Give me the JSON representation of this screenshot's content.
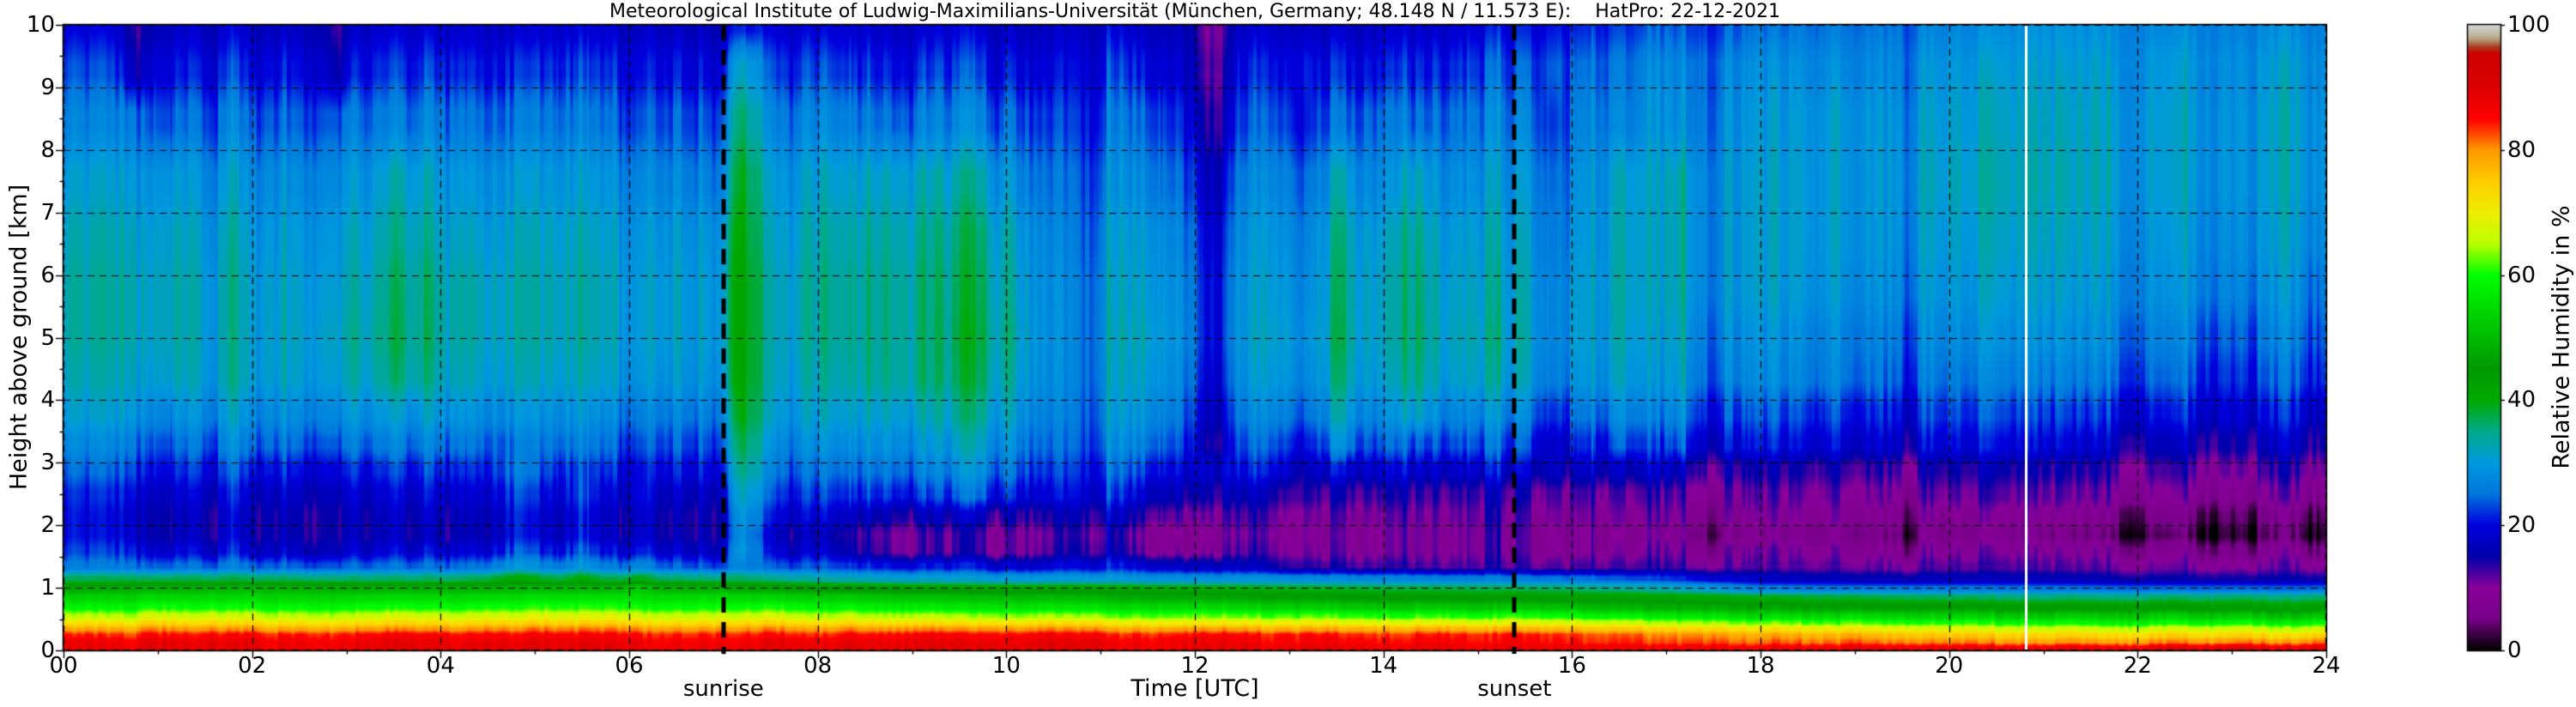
{
  "title": "Meteorological Institute of Ludwig-Maximilians-Universität (München, Germany; 48.148 N / 11.573 E):    HatPro: 22-12-2021",
  "axes": {
    "x_label": "Time [UTC]",
    "y_label": "Height above ground [km]",
    "x_tick_times": [
      0,
      2,
      4,
      6,
      8,
      10,
      12,
      14,
      16,
      18,
      20,
      22,
      24
    ],
    "x_tick_labels": [
      "00",
      "02",
      "04",
      "06",
      "08",
      "10",
      "12",
      "14",
      "16",
      "18",
      "20",
      "22",
      "24"
    ],
    "y_tick_values": [
      0,
      1,
      2,
      3,
      4,
      5,
      6,
      7,
      8,
      9,
      10
    ],
    "y_tick_labels": [
      "0",
      "1",
      "2",
      "3",
      "4",
      "5",
      "6",
      "7",
      "8",
      "9",
      "10"
    ],
    "x_range_hours": [
      0,
      24
    ],
    "y_range_km": [
      0,
      10
    ],
    "grid": "dashed"
  },
  "colorbar": {
    "label": "Relative Humidity in %",
    "tick_values": [
      0,
      20,
      40,
      60,
      80,
      100
    ],
    "tick_labels": [
      "0",
      "20",
      "40",
      "60",
      "80",
      "100"
    ],
    "range": [
      0,
      100
    ]
  },
  "annotations": {
    "sunrise_label": "sunrise",
    "sunset_label": "sunset",
    "sunrise_time_utc": 7.0,
    "sunset_time_utc": 15.39,
    "data_gap_time_utc": 20.81,
    "line_color": "#000000",
    "gap_line_color": "#ffffff"
  },
  "chart_data": {
    "type": "heatmap",
    "value_name": "Relative Humidity in %",
    "x_unit": "hours UTC",
    "y_unit": "km above ground",
    "heights": [
      0.05,
      0.15,
      0.25,
      0.35,
      0.45,
      0.55,
      0.7,
      0.85,
      1.0,
      1.15,
      1.35,
      1.6,
      1.85,
      2.15,
      2.5,
      2.9,
      3.3,
      3.8,
      4.4,
      5.0,
      5.8,
      6.6,
      7.5,
      8.5,
      9.3,
      10.0
    ],
    "keyframe_times": [
      0,
      1,
      2,
      3,
      4,
      5,
      6,
      7,
      7.3,
      8,
      9,
      10,
      10.8,
      11.5,
      12.2,
      13,
      14,
      15,
      16,
      17,
      18,
      19,
      20,
      21,
      22,
      23,
      24
    ],
    "profiles": [
      [
        88,
        87,
        84,
        78,
        71,
        65,
        58,
        53,
        47,
        36,
        24,
        20,
        18,
        18,
        19,
        22,
        25,
        28,
        30,
        31,
        31,
        30,
        28,
        24,
        21,
        18
      ],
      [
        88,
        87,
        84,
        79,
        72,
        66,
        59,
        54,
        48,
        37,
        25,
        20,
        17,
        17,
        19,
        22,
        25,
        29,
        31,
        32,
        32,
        31,
        29,
        25,
        21,
        18
      ],
      [
        88,
        87,
        85,
        79,
        72,
        66,
        59,
        54,
        49,
        37,
        25,
        19,
        17,
        17,
        19,
        22,
        26,
        29,
        32,
        32,
        32,
        31,
        29,
        25,
        21,
        18
      ],
      [
        88,
        87,
        85,
        79,
        72,
        66,
        59,
        54,
        48,
        36,
        24,
        18,
        16,
        16,
        18,
        21,
        25,
        29,
        32,
        33,
        32,
        31,
        29,
        25,
        21,
        18
      ],
      [
        88,
        87,
        85,
        79,
        72,
        66,
        59,
        54,
        48,
        36,
        24,
        18,
        15,
        16,
        18,
        21,
        25,
        29,
        32,
        33,
        33,
        31,
        29,
        25,
        21,
        18
      ],
      [
        88,
        87,
        85,
        80,
        73,
        67,
        60,
        55,
        49,
        37,
        25,
        19,
        16,
        16,
        18,
        21,
        25,
        28,
        31,
        32,
        32,
        31,
        29,
        25,
        21,
        18
      ],
      [
        88,
        87,
        85,
        80,
        73,
        67,
        60,
        55,
        49,
        37,
        25,
        19,
        16,
        16,
        18,
        21,
        24,
        27,
        30,
        31,
        31,
        30,
        28,
        24,
        21,
        18
      ],
      [
        88,
        87,
        85,
        80,
        73,
        67,
        60,
        55,
        48,
        36,
        24,
        19,
        17,
        17,
        19,
        22,
        25,
        28,
        31,
        32,
        32,
        31,
        28,
        25,
        21,
        18
      ],
      [
        88,
        87,
        85,
        80,
        73,
        67,
        60,
        54,
        47,
        36,
        26,
        22,
        21,
        23,
        26,
        29,
        31,
        33,
        34,
        34,
        34,
        33,
        32,
        29,
        25,
        21
      ],
      [
        89,
        88,
        85,
        80,
        73,
        66,
        59,
        53,
        45,
        33,
        22,
        16,
        14,
        17,
        20,
        23,
        26,
        29,
        31,
        32,
        32,
        31,
        29,
        25,
        21,
        18
      ],
      [
        89,
        88,
        86,
        80,
        72,
        65,
        57,
        51,
        43,
        31,
        20,
        11,
        11,
        15,
        20,
        24,
        27,
        30,
        33,
        33,
        33,
        32,
        30,
        25,
        21,
        18
      ],
      [
        89,
        88,
        86,
        80,
        72,
        64,
        56,
        50,
        42,
        30,
        19,
        11,
        11,
        15,
        21,
        25,
        28,
        31,
        33,
        34,
        33,
        32,
        29,
        25,
        21,
        18
      ],
      [
        88,
        87,
        85,
        79,
        71,
        63,
        55,
        49,
        42,
        30,
        20,
        15,
        14,
        16,
        20,
        22,
        24,
        25,
        26,
        26,
        26,
        25,
        24,
        22,
        20,
        18
      ],
      [
        88,
        87,
        85,
        79,
        71,
        63,
        55,
        48,
        41,
        29,
        19,
        11,
        10,
        14,
        19,
        23,
        27,
        30,
        32,
        33,
        32,
        31,
        28,
        25,
        21,
        18
      ],
      [
        88,
        87,
        85,
        79,
        70,
        62,
        54,
        47,
        40,
        29,
        19,
        13,
        12,
        14,
        18,
        21,
        23,
        25,
        27,
        28,
        28,
        27,
        25,
        22,
        20,
        18
      ],
      [
        88,
        86,
        85,
        78,
        70,
        62,
        53,
        46,
        39,
        28,
        14,
        11,
        10,
        11,
        14,
        20,
        24,
        28,
        31,
        32,
        31,
        30,
        28,
        24,
        21,
        18
      ],
      [
        88,
        86,
        84,
        78,
        69,
        61,
        52,
        45,
        38,
        27,
        13,
        10,
        10,
        11,
        14,
        19,
        24,
        28,
        31,
        32,
        32,
        31,
        28,
        25,
        21,
        18
      ],
      [
        87,
        85,
        84,
        77,
        68,
        60,
        51,
        44,
        37,
        26,
        12,
        10,
        10,
        11,
        13,
        18,
        23,
        27,
        31,
        32,
        31,
        30,
        28,
        25,
        22,
        19
      ],
      [
        87,
        84,
        83,
        76,
        67,
        59,
        50,
        43,
        36,
        25,
        12,
        9,
        9,
        10,
        12,
        17,
        21,
        25,
        29,
        30,
        30,
        29,
        28,
        26,
        24,
        21
      ],
      [
        87,
        83,
        81,
        74,
        65,
        57,
        48,
        42,
        33,
        22,
        12,
        9,
        7,
        9,
        11,
        16,
        20,
        24,
        27,
        28,
        29,
        29,
        29,
        27,
        26,
        23
      ],
      [
        87,
        82,
        79,
        72,
        63,
        55,
        47,
        40,
        26,
        17,
        11,
        9,
        6,
        8,
        10,
        13,
        19,
        22,
        26,
        27,
        29,
        29,
        29,
        28,
        27,
        24
      ],
      [
        87,
        81,
        77,
        70,
        61,
        54,
        45,
        38,
        25,
        16,
        11,
        8,
        6,
        8,
        10,
        13,
        18,
        21,
        25,
        26,
        28,
        29,
        29,
        29,
        27,
        25
      ],
      [
        87,
        80,
        75,
        68,
        60,
        53,
        45,
        37,
        25,
        16,
        11,
        8,
        5,
        7,
        10,
        13,
        18,
        21,
        24,
        26,
        28,
        29,
        30,
        29,
        28,
        26
      ],
      [
        87,
        79,
        74,
        67,
        59,
        52,
        44,
        36,
        25,
        16,
        11,
        8,
        5,
        7,
        10,
        13,
        18,
        21,
        25,
        27,
        29,
        30,
        31,
        30,
        29,
        28
      ],
      [
        87,
        79,
        73,
        66,
        58,
        52,
        44,
        36,
        24,
        15,
        11,
        8,
        4,
        6,
        10,
        13,
        17,
        21,
        25,
        27,
        29,
        30,
        31,
        31,
        30,
        28
      ],
      [
        88,
        79,
        73,
        66,
        58,
        51,
        43,
        36,
        24,
        15,
        11,
        8,
        4,
        6,
        10,
        13,
        17,
        21,
        24,
        26,
        29,
        30,
        31,
        31,
        30,
        28
      ],
      [
        88,
        80,
        73,
        66,
        58,
        51,
        43,
        36,
        24,
        15,
        11,
        8,
        4,
        6,
        10,
        13,
        17,
        20,
        24,
        26,
        28,
        30,
        31,
        31,
        30,
        28
      ]
    ],
    "streaks": [
      [
        0.75,
        0.1,
        9.0,
        10.0,
        -5
      ],
      [
        2.9,
        0.1,
        9.2,
        10.0,
        -4
      ],
      [
        1.1,
        0.15,
        4.0,
        8.0,
        2
      ],
      [
        3.6,
        0.2,
        4.0,
        7.5,
        2
      ],
      [
        4.8,
        0.2,
        1.1,
        3.2,
        4
      ],
      [
        5.5,
        0.12,
        1.1,
        2.8,
        3
      ],
      [
        6.1,
        0.1,
        1.0,
        2.5,
        3
      ],
      [
        7.22,
        0.13,
        1.4,
        9.6,
        6
      ],
      [
        8.8,
        0.3,
        2.5,
        8.0,
        2
      ],
      [
        9.7,
        0.25,
        2.5,
        8.0,
        2
      ],
      [
        12.12,
        0.07,
        3.0,
        10.0,
        -6
      ],
      [
        12.3,
        0.06,
        3.0,
        10.0,
        -5
      ],
      [
        13.15,
        0.08,
        2.8,
        8.5,
        -4
      ],
      [
        13.55,
        0.1,
        3.0,
        8.0,
        4
      ],
      [
        14.35,
        0.12,
        3.5,
        8.0,
        4
      ],
      [
        15.8,
        0.09,
        3.0,
        8.5,
        -4
      ],
      [
        16.55,
        0.12,
        3.0,
        8.0,
        3
      ],
      [
        17.15,
        0.1,
        3.0,
        7.5,
        3
      ]
    ],
    "colormap_name": "nipy-spectral-like",
    "colormap_stops": [
      [
        0.0,
        "#000000"
      ],
      [
        0.05,
        "#770088"
      ],
      [
        0.1,
        "#880099"
      ],
      [
        0.15,
        "#0000aa"
      ],
      [
        0.2,
        "#0000dd"
      ],
      [
        0.25,
        "#0077dd"
      ],
      [
        0.3,
        "#0099dd"
      ],
      [
        0.35,
        "#00aa88"
      ],
      [
        0.4,
        "#00aa00"
      ],
      [
        0.45,
        "#009900"
      ],
      [
        0.5,
        "#00bb00"
      ],
      [
        0.55,
        "#00dd00"
      ],
      [
        0.6,
        "#00ff00"
      ],
      [
        0.65,
        "#bbff00"
      ],
      [
        0.7,
        "#eeee00"
      ],
      [
        0.75,
        "#ffcc00"
      ],
      [
        0.8,
        "#ff9900"
      ],
      [
        0.85,
        "#ff0000"
      ],
      [
        0.9,
        "#dd0000"
      ],
      [
        0.955,
        "#cc0000"
      ],
      [
        0.965,
        "#aa3c1e"
      ],
      [
        0.98,
        "#b8ac8a"
      ],
      [
        1.0,
        "#d3d3d3"
      ]
    ],
    "legend_position": "right-colorbar",
    "background_color": "#ffffff",
    "grid_color": "#000000"
  }
}
